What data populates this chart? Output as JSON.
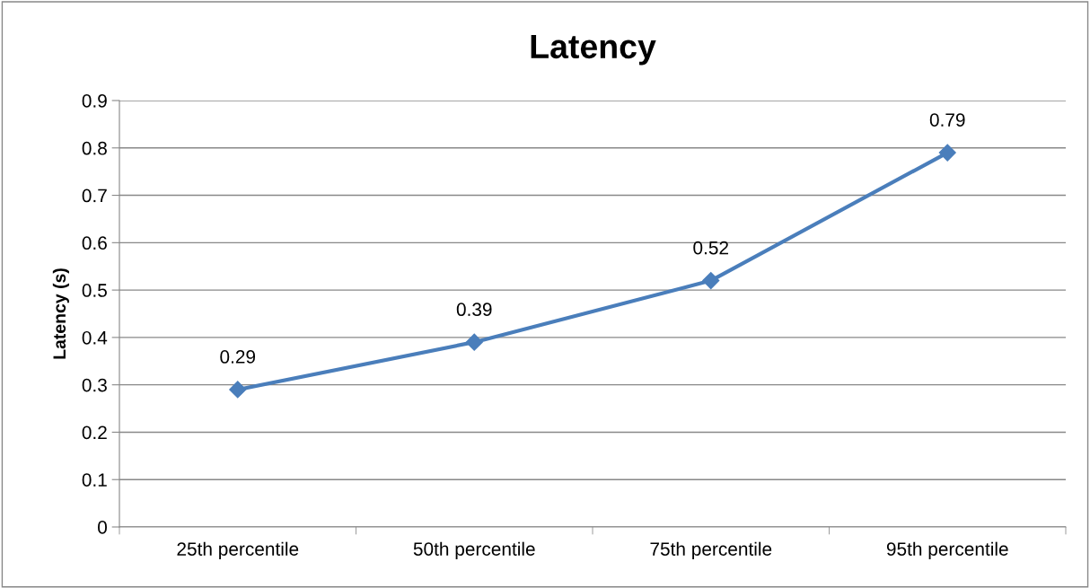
{
  "chart_data": {
    "type": "line",
    "title": "Latency",
    "ylabel": "Latency (s)",
    "categories": [
      "25th percentile",
      "50th percentile",
      "75th percentile",
      "95th percentile"
    ],
    "series": [
      {
        "color": "#4a7ebb",
        "values": [
          0.29,
          0.39,
          0.52,
          0.79
        ]
      }
    ],
    "ylim": [
      0,
      0.9
    ],
    "yticks": [
      0,
      0.1,
      0.2,
      0.3,
      0.4,
      0.5,
      0.6,
      0.7,
      0.8,
      0.9
    ],
    "grid": "y",
    "marker": "diamond",
    "line_style": "solid",
    "data_labels": true,
    "legend": false
  }
}
